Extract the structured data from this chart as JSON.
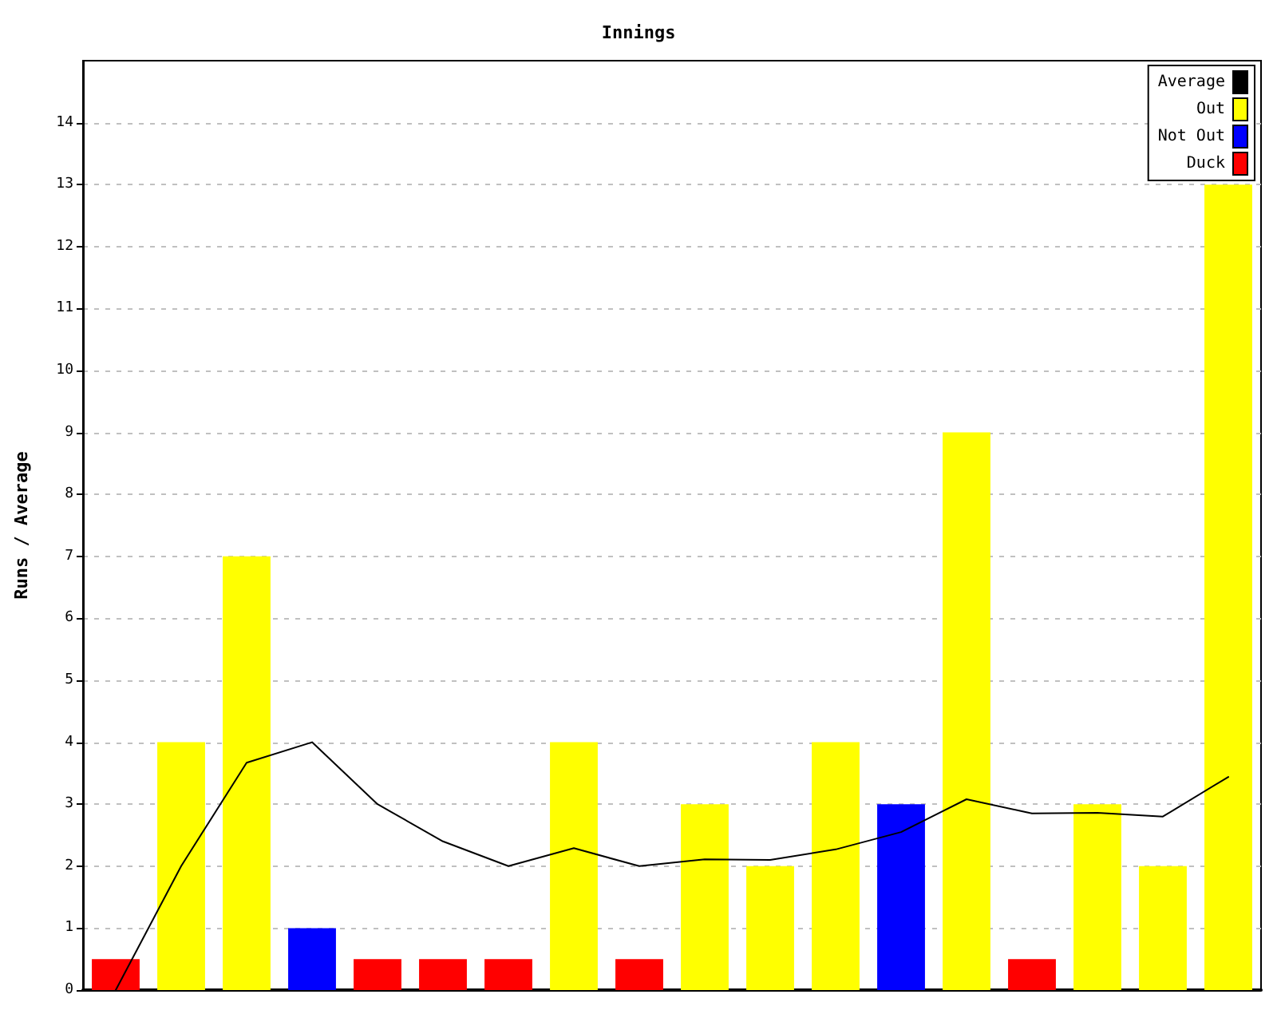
{
  "chart_data": {
    "type": "bar",
    "title": "Innings",
    "ylabel": "Runs / Average",
    "categories": [
      null,
      null,
      null,
      null,
      null,
      null,
      null,
      null,
      null,
      null,
      null,
      null,
      null,
      null,
      null,
      null,
      null,
      null
    ],
    "stacked": true,
    "series": [
      {
        "name": "Average",
        "type": "line",
        "color": "#000000",
        "values": [
          0,
          2,
          3.67,
          4,
          3,
          2.4,
          2,
          2.29,
          2,
          2.11,
          2.1,
          2.27,
          2.55,
          3.08,
          2.85,
          2.86,
          2.8,
          3.44
        ]
      },
      {
        "name": "Out",
        "color": "#ffff00",
        "values": [
          null,
          4,
          7,
          null,
          null,
          null,
          null,
          4,
          null,
          3,
          2,
          4,
          null,
          9,
          null,
          3,
          2,
          13
        ]
      },
      {
        "name": "Not Out",
        "color": "#0000ff",
        "values": [
          null,
          null,
          null,
          1,
          null,
          null,
          null,
          null,
          null,
          null,
          null,
          null,
          3,
          null,
          null,
          null,
          null,
          null
        ]
      },
      {
        "name": "Duck",
        "color": "#ff0000",
        "values": [
          0.5,
          null,
          null,
          null,
          0.5,
          0.5,
          0.5,
          null,
          0.5,
          null,
          null,
          null,
          null,
          null,
          0.5,
          null,
          null,
          null
        ]
      }
    ],
    "ylim": [
      0,
      15
    ],
    "yticks": [
      0,
      1,
      2,
      3,
      4,
      5,
      6,
      7,
      8,
      9,
      10,
      11,
      12,
      13,
      14
    ],
    "grid": "y",
    "legend": "top right",
    "marker": "none",
    "tick_labels": "y"
  }
}
